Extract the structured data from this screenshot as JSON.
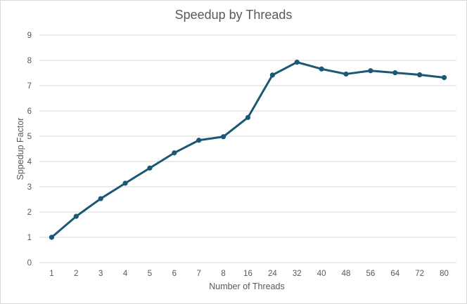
{
  "chart_data": {
    "type": "line",
    "title": "Speedup by Threads",
    "xlabel": "Number of Threads",
    "ylabel": "Sppedup Factor",
    "categories": [
      "1",
      "2",
      "3",
      "4",
      "5",
      "6",
      "7",
      "8",
      "16",
      "24",
      "32",
      "40",
      "48",
      "56",
      "64",
      "72",
      "80"
    ],
    "series": [
      {
        "values": [
          1.0,
          1.83,
          2.53,
          3.14,
          3.74,
          4.34,
          4.84,
          4.98,
          5.74,
          7.42,
          7.93,
          7.66,
          7.46,
          7.59,
          7.51,
          7.43,
          7.32
        ]
      }
    ],
    "ylim": [
      0,
      9
    ],
    "yticks": [
      "0",
      "1",
      "2",
      "3",
      "4",
      "5",
      "6",
      "7",
      "8",
      "9"
    ],
    "grid": true,
    "legend": "none",
    "line_color": "#1a5875",
    "grid_color": "#d9d9d9"
  }
}
